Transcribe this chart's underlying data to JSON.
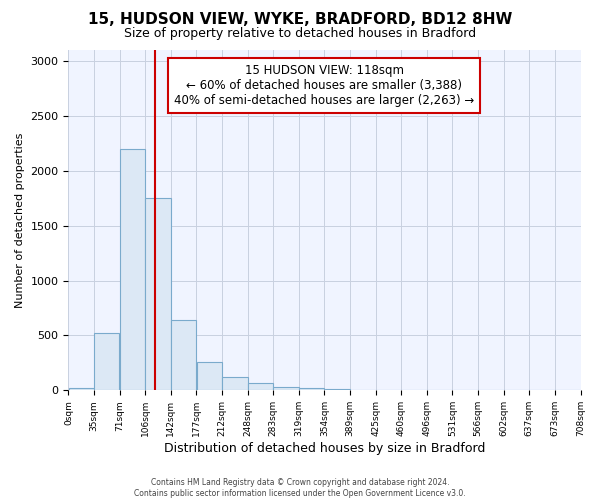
{
  "title": "15, HUDSON VIEW, WYKE, BRADFORD, BD12 8HW",
  "subtitle": "Size of property relative to detached houses in Bradford",
  "xlabel": "Distribution of detached houses by size in Bradford",
  "ylabel": "Number of detached properties",
  "bin_labels": [
    "0sqm",
    "35sqm",
    "71sqm",
    "106sqm",
    "142sqm",
    "177sqm",
    "212sqm",
    "248sqm",
    "283sqm",
    "319sqm",
    "354sqm",
    "389sqm",
    "425sqm",
    "460sqm",
    "496sqm",
    "531sqm",
    "566sqm",
    "602sqm",
    "637sqm",
    "673sqm",
    "708sqm"
  ],
  "bar_values": [
    25,
    520,
    2200,
    1750,
    640,
    260,
    125,
    65,
    35,
    20,
    10,
    5,
    3,
    2,
    1,
    0,
    0,
    0,
    0,
    0
  ],
  "bar_color": "#dce8f5",
  "bar_edge_color": "#7aaacc",
  "property_line_x": 118,
  "bin_width": 35,
  "ylim": [
    0,
    3100
  ],
  "yticks": [
    0,
    500,
    1000,
    1500,
    2000,
    2500,
    3000
  ],
  "annotation_title": "15 HUDSON VIEW: 118sqm",
  "annotation_line1": "← 60% of detached houses are smaller (3,388)",
  "annotation_line2": "40% of semi-detached houses are larger (2,263) →",
  "annotation_box_color": "#ffffff",
  "annotation_box_edge": "#cc0000",
  "red_line_color": "#cc0000",
  "footer_line1": "Contains HM Land Registry data © Crown copyright and database right 2024.",
  "footer_line2": "Contains public sector information licensed under the Open Government Licence v3.0.",
  "background_color": "#ffffff",
  "plot_bg_color": "#f0f4ff",
  "grid_color": "#c8d0e0"
}
